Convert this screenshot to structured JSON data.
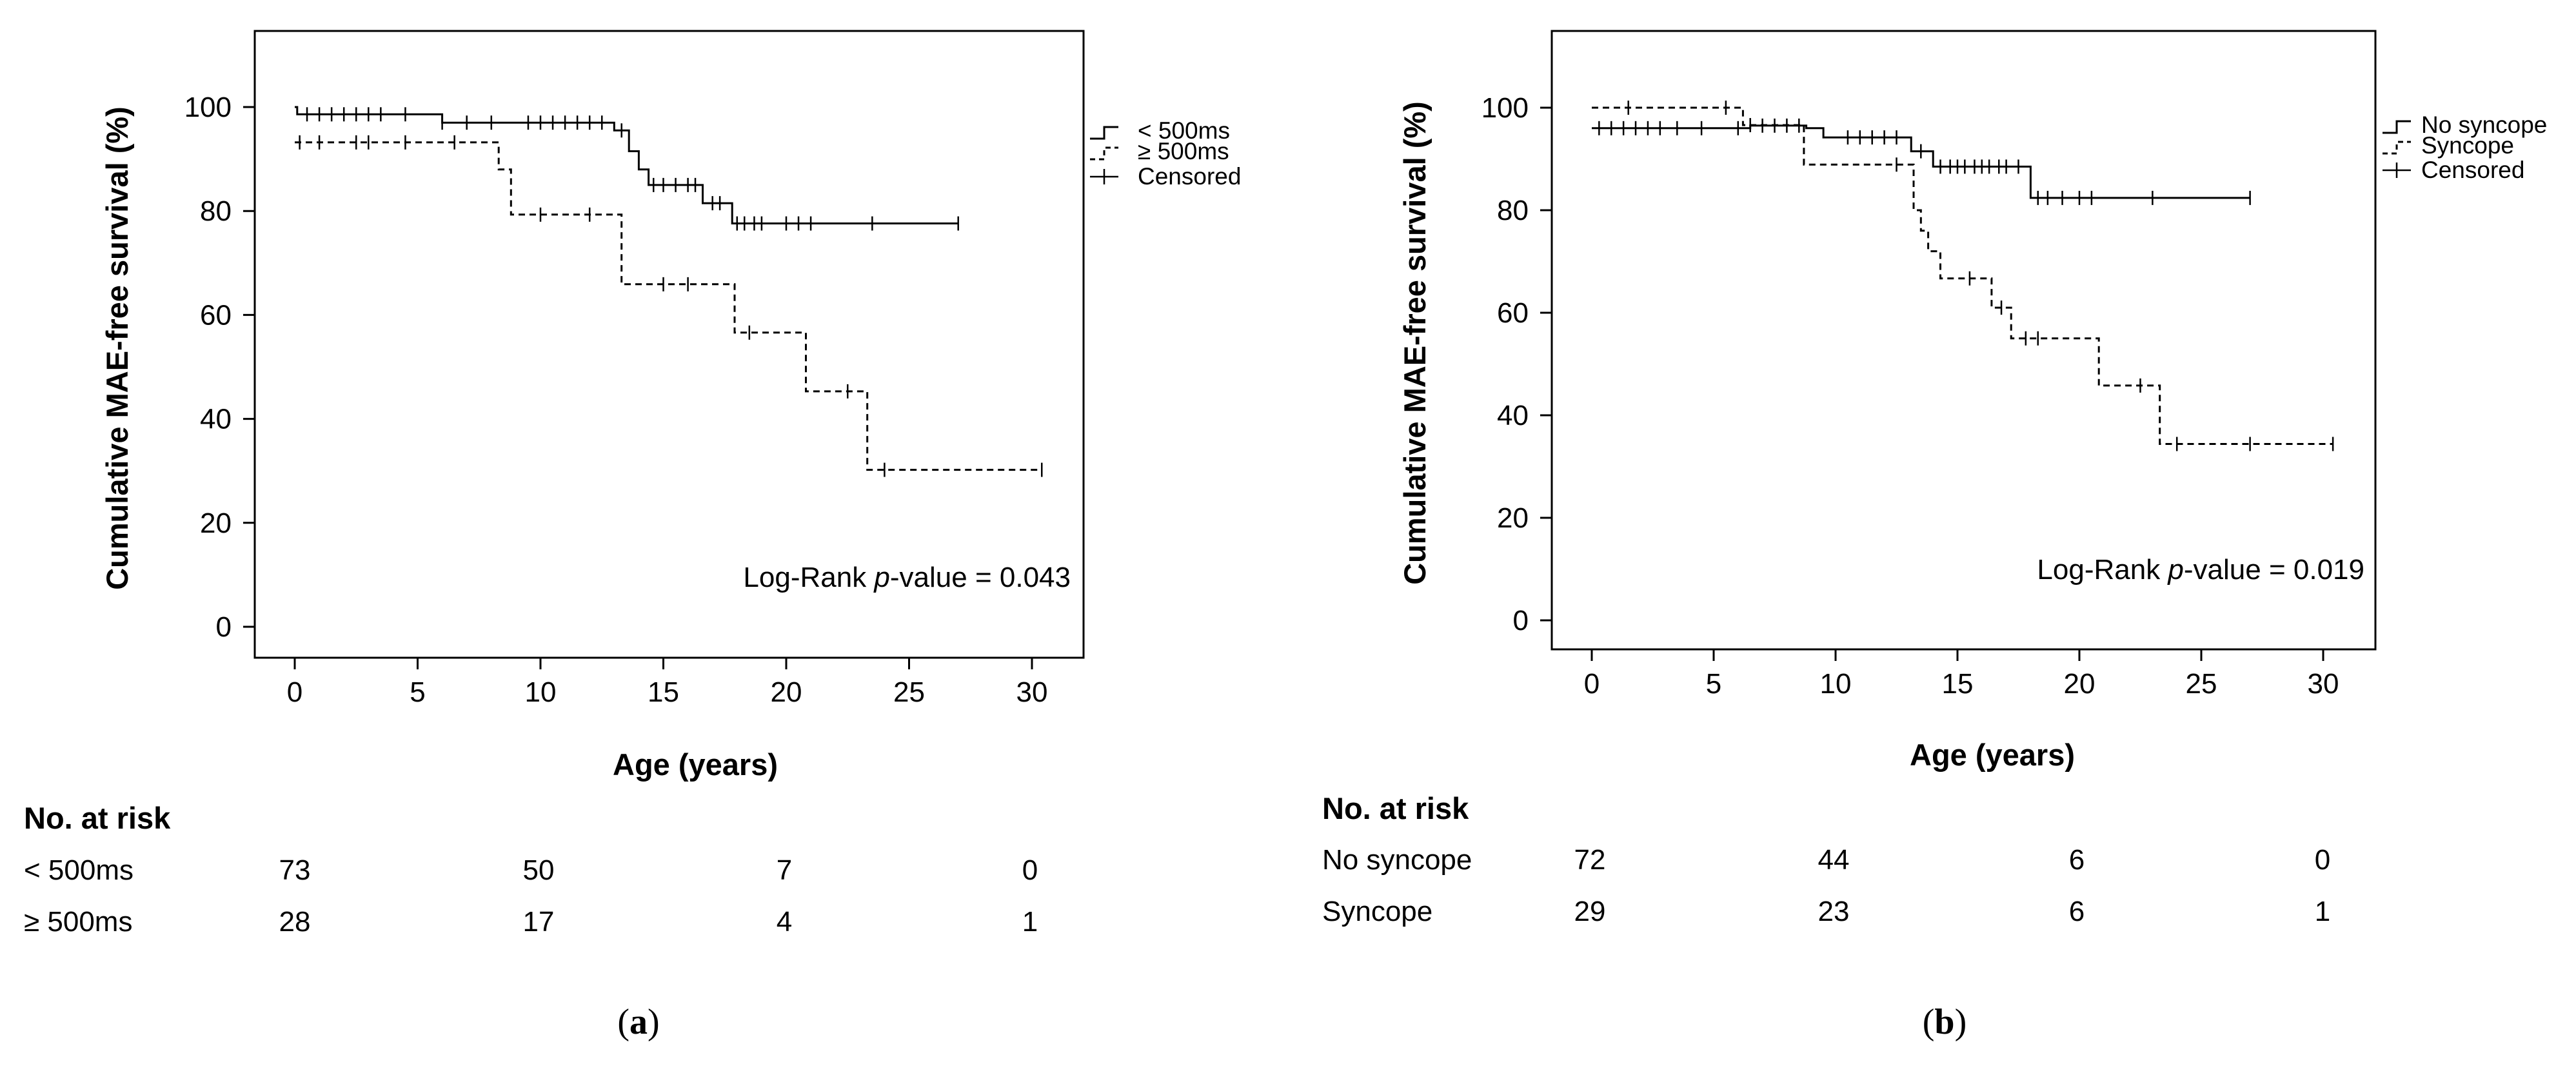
{
  "chart_data": [
    {
      "type": "line",
      "panel_label": "a",
      "title": "",
      "xlabel": "Age (years)",
      "ylabel": "Cumulative MAE-free survival (%)",
      "xlim": [
        -1,
        32
      ],
      "ylim": [
        -5,
        115
      ],
      "xticks": [
        "0",
        "5",
        "10",
        "15",
        "20",
        "25",
        "30"
      ],
      "yticks": [
        "0",
        "20",
        "40",
        "60",
        "80",
        "100"
      ],
      "grid": false,
      "legend_position": "right",
      "legend": [
        {
          "name": "< 500ms",
          "style": "solid"
        },
        {
          "name": "≥ 500ms",
          "style": "dashed"
        },
        {
          "name": "Censored",
          "style": "cross"
        }
      ],
      "annotation": {
        "prefix": "Log-Rank ",
        "italic": "p",
        "suffix": "-value = 0.043"
      },
      "series": [
        {
          "name": "< 500ms",
          "style": "solid",
          "steps": [
            [
              0,
              100
            ],
            [
              0.1,
              98.6
            ],
            [
              6,
              97
            ],
            [
              13,
              95.5
            ],
            [
              13.6,
              91.5
            ],
            [
              14,
              88
            ],
            [
              14.4,
              85
            ],
            [
              16.6,
              81.5
            ],
            [
              17.8,
              77.6
            ],
            [
              27,
              77.6
            ]
          ],
          "censored": [
            0.5,
            1,
            1.5,
            2,
            2.5,
            3,
            3.5,
            4.5,
            6,
            7,
            8,
            9.5,
            10,
            10.5,
            11,
            11.5,
            12,
            12.5,
            13.3,
            14.6,
            15,
            15.5,
            16,
            16.3,
            17,
            17.3,
            18,
            18.3,
            18.7,
            19,
            20,
            20.5,
            21,
            23.5,
            27
          ]
        },
        {
          "name": "≥ 500ms",
          "style": "dashed",
          "steps": [
            [
              0,
              93.2
            ],
            [
              8.3,
              88
            ],
            [
              8.8,
              79.3
            ],
            [
              13.3,
              65.9
            ],
            [
              17.9,
              56.6
            ],
            [
              20.8,
              45.3
            ],
            [
              23.3,
              30.2
            ],
            [
              30.4,
              30.2
            ]
          ],
          "censored": [
            0.2,
            1,
            2.5,
            3,
            4.5,
            6.5,
            10,
            12,
            15,
            16,
            18.5,
            22.5,
            24,
            30.4
          ]
        }
      ],
      "risk_table": {
        "header": "No. at risk",
        "time_points": [
          0,
          10,
          20,
          30
        ],
        "rows": [
          {
            "label": "< 500ms",
            "values": [
              "73",
              "50",
              "7",
              "0"
            ]
          },
          {
            "label": "≥ 500ms",
            "values": [
              "28",
              "17",
              "4",
              "1"
            ]
          }
        ]
      }
    },
    {
      "type": "line",
      "panel_label": "b",
      "title": "",
      "xlabel": "Age (years)",
      "ylabel": "Cumulative MAE-free survival (%)",
      "xlim": [
        -1,
        32
      ],
      "ylim": [
        -5,
        115
      ],
      "xticks": [
        "0",
        "5",
        "10",
        "15",
        "20",
        "25",
        "30"
      ],
      "yticks": [
        "0",
        "20",
        "40",
        "60",
        "80",
        "100"
      ],
      "grid": false,
      "legend_position": "right",
      "legend": [
        {
          "name": "No syncope",
          "style": "solid"
        },
        {
          "name": "Syncope",
          "style": "dashed"
        },
        {
          "name": "Censored",
          "style": "cross"
        }
      ],
      "annotation": {
        "prefix": "Log-Rank ",
        "italic": "p",
        "suffix": "-value = 0.019"
      },
      "series": [
        {
          "name": "No syncope",
          "style": "solid",
          "steps": [
            [
              0,
              96
            ],
            [
              6.5,
              96.5
            ],
            [
              8.8,
              96
            ],
            [
              9.5,
              94.2
            ],
            [
              13.1,
              91.5
            ],
            [
              14,
              88.5
            ],
            [
              18,
              82.4
            ],
            [
              27,
              82.4
            ]
          ],
          "censored": [
            0.3,
            0.8,
            1.3,
            1.8,
            2.3,
            2.8,
            3.5,
            4.5,
            6,
            7,
            7.5,
            8,
            8.5,
            10.5,
            11,
            11.5,
            12,
            12.5,
            13.5,
            14.3,
            14.7,
            15,
            15.3,
            15.7,
            16,
            16.3,
            16.7,
            17,
            17.5,
            18.3,
            18.7,
            19.3,
            20,
            20.5,
            23,
            27
          ]
        },
        {
          "name": "Syncope",
          "style": "dashed",
          "steps": [
            [
              0,
              100
            ],
            [
              6.2,
              96.6
            ],
            [
              8.7,
              88.9
            ],
            [
              13.2,
              80
            ],
            [
              13.5,
              76
            ],
            [
              13.8,
              72
            ],
            [
              14.3,
              66.7
            ],
            [
              16.4,
              61
            ],
            [
              17.2,
              55
            ],
            [
              20.8,
              45.8
            ],
            [
              23.3,
              34.4
            ],
            [
              30.4,
              34.4
            ]
          ],
          "censored": [
            1.5,
            5.5,
            6.5,
            12.5,
            15.5,
            16.8,
            17.8,
            18.3,
            22.5,
            24,
            27,
            30.4
          ]
        }
      ],
      "risk_table": {
        "header": "No. at risk",
        "time_points": [
          0,
          10,
          20,
          30
        ],
        "rows": [
          {
            "label": "No syncope",
            "values": [
              "72",
              "44",
              "6",
              "0"
            ]
          },
          {
            "label": "Syncope",
            "values": [
              "29",
              "23",
              "6",
              "1"
            ]
          }
        ]
      }
    }
  ]
}
